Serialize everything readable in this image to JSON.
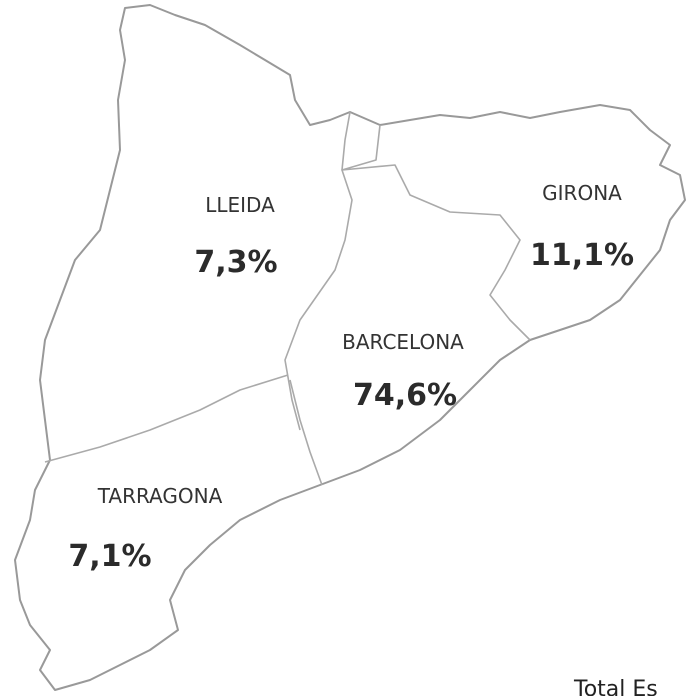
{
  "regions": [
    {
      "name": "LLEIDA",
      "value": "7,3%"
    },
    {
      "name": "GIRONA",
      "value": "11,1%"
    },
    {
      "name": "BARCELONA",
      "value": "74,6%"
    },
    {
      "name": "TARRAGONA",
      "value": "7,1%"
    }
  ],
  "footer": "Total Es"
}
